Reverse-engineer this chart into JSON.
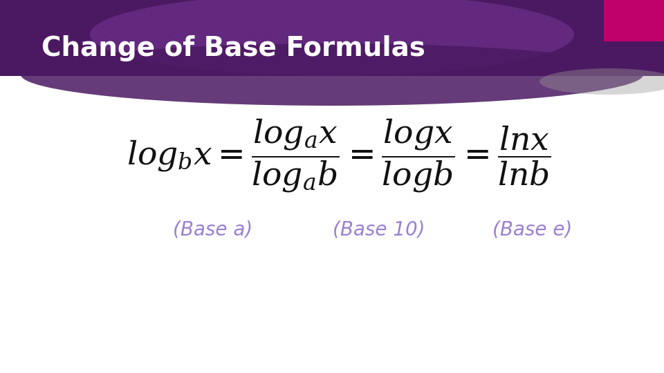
{
  "title": "Change of Base Formulas",
  "title_color": "#ffffff",
  "title_fontsize": 28,
  "bg_color": "#ffffff",
  "header_bg_color": "#4b1962",
  "accent_color": "#c0006a",
  "formula_color": "#111111",
  "label_color": "#9b7fd4",
  "label_fontsize": 20,
  "base_a_label": "(Base a)",
  "base_10_label": "(Base 10)",
  "base_e_label": "(Base e)"
}
